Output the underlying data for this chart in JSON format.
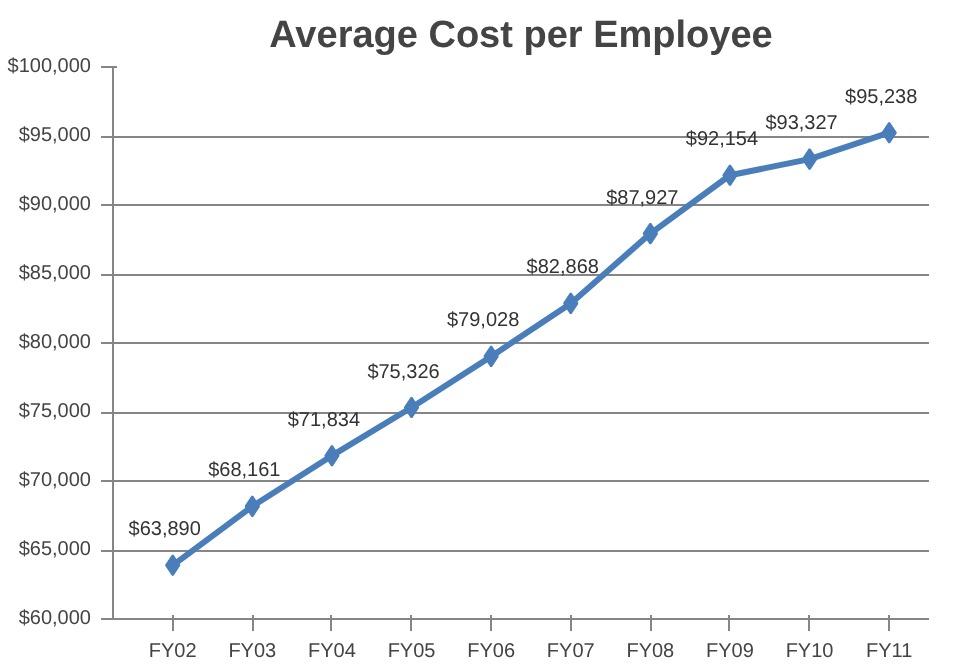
{
  "chart_data": {
    "type": "line",
    "title": "Average Cost per Employee",
    "categories": [
      "FY02",
      "FY03",
      "FY04",
      "FY05",
      "FY06",
      "FY07",
      "FY08",
      "FY09",
      "FY10",
      "FY11"
    ],
    "values": [
      63890,
      68161,
      71834,
      75326,
      79028,
      82868,
      87927,
      92154,
      93327,
      95238
    ],
    "value_labels": [
      "$63,890",
      "$68,161",
      "$71,834",
      "$75,326",
      "$79,028",
      "$82,868",
      "$87,927",
      "$92,154",
      "$93,327",
      "$95,238"
    ],
    "color": "#4a7ebb",
    "marker": "diamond",
    "line_style": "solid",
    "grid": "y",
    "ylim": [
      60000,
      100000
    ],
    "yticks": [
      {
        "value": 60000,
        "label": "$60,000"
      },
      {
        "value": 65000,
        "label": "$65,000"
      },
      {
        "value": 70000,
        "label": "$70,000"
      },
      {
        "value": 75000,
        "label": "$75,000"
      },
      {
        "value": 80000,
        "label": "$80,000"
      },
      {
        "value": 85000,
        "label": "$85,000"
      },
      {
        "value": 90000,
        "label": "$90,000"
      },
      {
        "value": 95000,
        "label": "$95,000"
      },
      {
        "value": 100000,
        "label": "$100,000"
      }
    ]
  }
}
